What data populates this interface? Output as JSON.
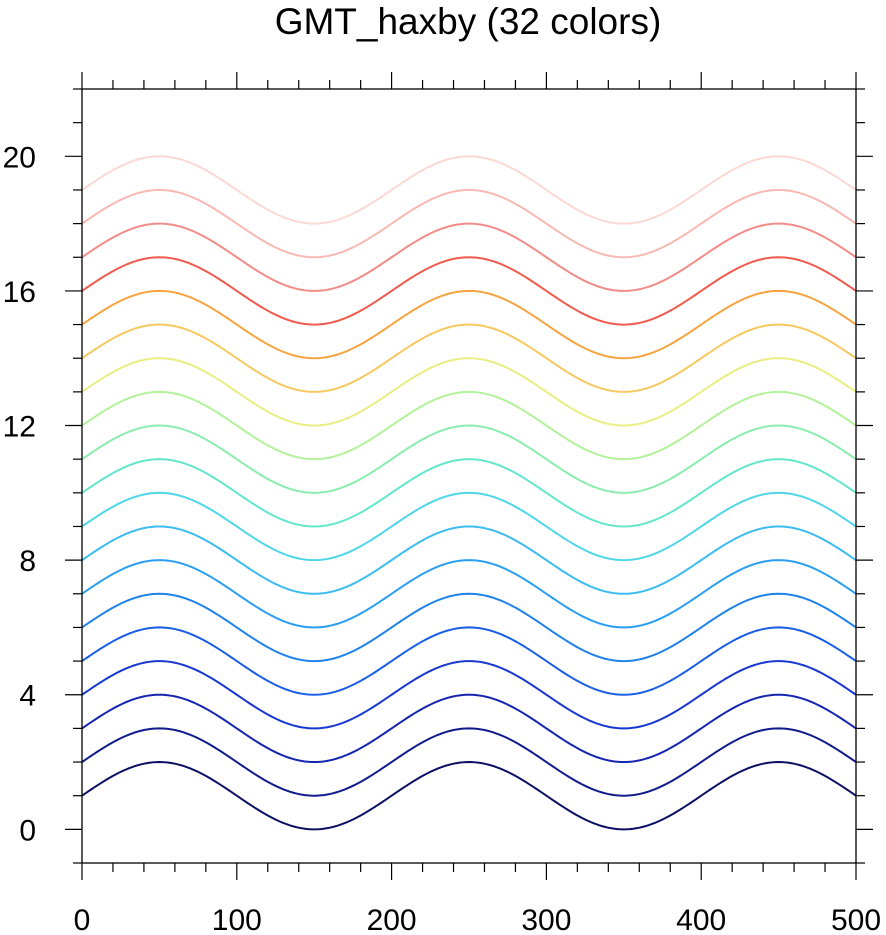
{
  "chart_data": {
    "type": "line",
    "title": "GMT_haxby (32 colors)",
    "xlabel": "",
    "ylabel": "",
    "xlim": [
      0,
      500
    ],
    "ylim": [
      -1,
      22
    ],
    "x_ticks": [
      "0",
      "100",
      "200",
      "300",
      "400",
      "500"
    ],
    "y_ticks": [
      "0",
      "4",
      "8",
      "12",
      "16",
      "20"
    ],
    "x_tick_values": [
      0,
      100,
      200,
      300,
      400,
      500
    ],
    "y_tick_values": [
      0,
      4,
      8,
      12,
      16,
      20
    ],
    "curve": {
      "formula": "y = offset + 1 + sin(2*pi*(x - 0)/200)",
      "period": 200,
      "amplitude": 1,
      "x_start": 0,
      "x_end": 500
    },
    "series": [
      {
        "offset": 0,
        "color": "#0a0f63"
      },
      {
        "offset": 1,
        "color": "#101a8c"
      },
      {
        "offset": 2,
        "color": "#1525b0"
      },
      {
        "offset": 3,
        "color": "#1838d0"
      },
      {
        "offset": 4,
        "color": "#1a5ee6"
      },
      {
        "offset": 5,
        "color": "#1f82ea"
      },
      {
        "offset": 6,
        "color": "#2a9ef0"
      },
      {
        "offset": 7,
        "color": "#3cbcf0"
      },
      {
        "offset": 8,
        "color": "#4fd6e8"
      },
      {
        "offset": 9,
        "color": "#62e6cc"
      },
      {
        "offset": 10,
        "color": "#8aecae"
      },
      {
        "offset": 11,
        "color": "#b2f29a"
      },
      {
        "offset": 12,
        "color": "#e8ee82"
      },
      {
        "offset": 13,
        "color": "#f8c860"
      },
      {
        "offset": 14,
        "color": "#f7a440"
      },
      {
        "offset": 15,
        "color": "#ef5a4c"
      },
      {
        "offset": 16,
        "color": "#f28c88"
      },
      {
        "offset": 17,
        "color": "#f8b8b4"
      },
      {
        "offset": 18,
        "color": "#fcd8d4"
      }
    ],
    "grid": false,
    "legend": "none"
  }
}
